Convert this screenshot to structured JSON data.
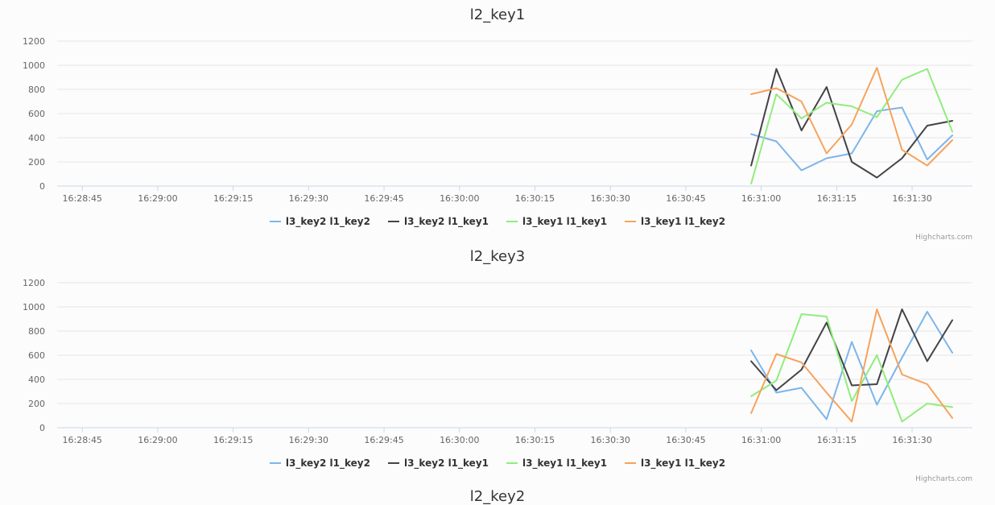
{
  "credits": "Highcharts.com",
  "next_chart_title": "l2_key2",
  "colors": {
    "l3_key2 l1_key2": "#7cb5ec",
    "l3_key2 l1_key1": "#434348",
    "l3_key1 l1_key1": "#90ed7d",
    "l3_key1 l1_key2": "#f7a35c"
  },
  "chart_data": [
    {
      "type": "line",
      "title": "l2_key1",
      "xlabel": "",
      "ylabel": "",
      "ylim": [
        0,
        1200
      ],
      "yticks": [
        0,
        200,
        400,
        600,
        800,
        1000,
        1200
      ],
      "xlim": [
        "16:28:40",
        "16:31:42"
      ],
      "xticks": [
        "16:28:45",
        "16:29:00",
        "16:29:15",
        "16:29:30",
        "16:29:45",
        "16:30:00",
        "16:30:15",
        "16:30:30",
        "16:30:45",
        "16:31:00",
        "16:31:15",
        "16:31:30"
      ],
      "grid": true,
      "legend": "bottom-center",
      "x": [
        "16:30:58",
        "16:31:03",
        "16:31:08",
        "16:31:13",
        "16:31:18",
        "16:31:23",
        "16:31:28",
        "16:31:33",
        "16:31:38"
      ],
      "series": [
        {
          "name": "l3_key2 l1_key2",
          "values": [
            430,
            370,
            130,
            230,
            270,
            620,
            650,
            220,
            420
          ]
        },
        {
          "name": "l3_key2 l1_key1",
          "values": [
            170,
            970,
            460,
            820,
            200,
            70,
            230,
            500,
            540
          ]
        },
        {
          "name": "l3_key1 l1_key1",
          "values": [
            20,
            760,
            560,
            690,
            660,
            570,
            880,
            970,
            450
          ]
        },
        {
          "name": "l3_key1 l1_key2",
          "values": [
            760,
            810,
            700,
            270,
            510,
            980,
            300,
            170,
            380
          ]
        }
      ]
    },
    {
      "type": "line",
      "title": "l2_key3",
      "xlabel": "",
      "ylabel": "",
      "ylim": [
        0,
        1200
      ],
      "yticks": [
        0,
        200,
        400,
        600,
        800,
        1000,
        1200
      ],
      "xlim": [
        "16:28:40",
        "16:31:42"
      ],
      "xticks": [
        "16:28:45",
        "16:29:00",
        "16:29:15",
        "16:29:30",
        "16:29:45",
        "16:30:00",
        "16:30:15",
        "16:30:30",
        "16:30:45",
        "16:31:00",
        "16:31:15",
        "16:31:30"
      ],
      "grid": true,
      "legend": "bottom-center",
      "x": [
        "16:30:58",
        "16:31:03",
        "16:31:08",
        "16:31:13",
        "16:31:18",
        "16:31:23",
        "16:31:28",
        "16:31:33",
        "16:31:38"
      ],
      "series": [
        {
          "name": "l3_key2 l1_key2",
          "values": [
            640,
            290,
            330,
            70,
            710,
            190,
            580,
            960,
            620
          ]
        },
        {
          "name": "l3_key2 l1_key1",
          "values": [
            550,
            310,
            480,
            870,
            350,
            360,
            980,
            550,
            890
          ]
        },
        {
          "name": "l3_key1 l1_key1",
          "values": [
            260,
            390,
            940,
            920,
            220,
            600,
            50,
            200,
            170
          ]
        },
        {
          "name": "l3_key1 l1_key2",
          "values": [
            120,
            610,
            540,
            290,
            50,
            980,
            440,
            360,
            80
          ]
        }
      ]
    }
  ]
}
